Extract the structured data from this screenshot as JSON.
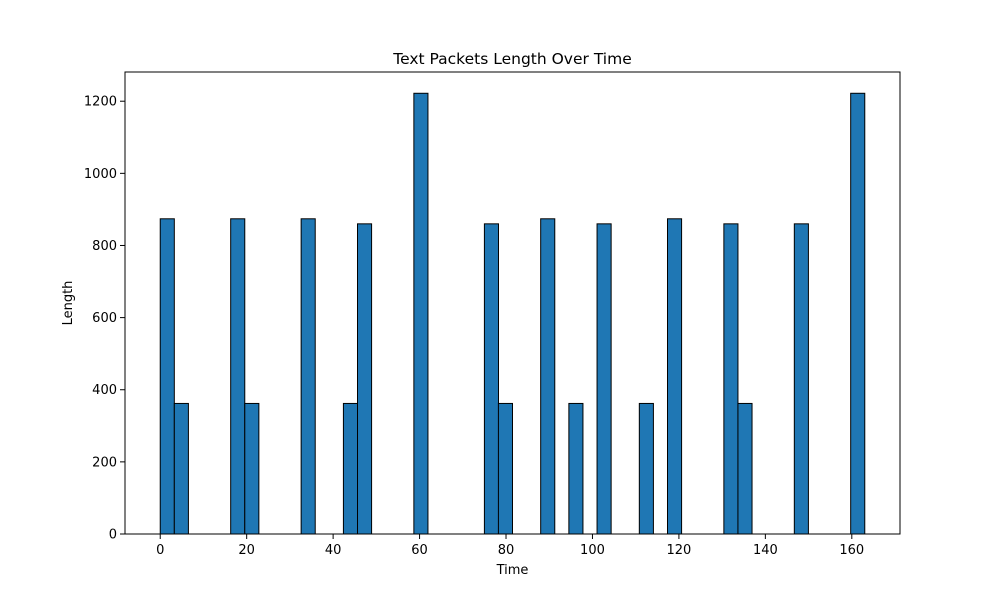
{
  "chart_data": {
    "type": "bar",
    "title": "Text Packets Length Over Time",
    "xlabel": "Time",
    "ylabel": "Length",
    "xlim": [
      -8.15,
      171.15
    ],
    "ylim": [
      0,
      1281
    ],
    "xticks": [
      0,
      20,
      40,
      60,
      80,
      100,
      120,
      140,
      160
    ],
    "yticks": [
      0,
      200,
      400,
      600,
      800,
      1000,
      1200
    ],
    "xtick_labels": [
      "0",
      "20",
      "40",
      "60",
      "80",
      "100",
      "120",
      "140",
      "160"
    ],
    "ytick_labels": [
      "0",
      "200",
      "400",
      "600",
      "800",
      "1000",
      "1200"
    ],
    "bin_width": 3.26,
    "bars": [
      {
        "x_start": 0.0,
        "value": 874
      },
      {
        "x_start": 3.26,
        "value": 362
      },
      {
        "x_start": 16.3,
        "value": 874
      },
      {
        "x_start": 19.56,
        "value": 362
      },
      {
        "x_start": 32.6,
        "value": 874
      },
      {
        "x_start": 42.38,
        "value": 362
      },
      {
        "x_start": 45.64,
        "value": 860
      },
      {
        "x_start": 58.68,
        "value": 1222
      },
      {
        "x_start": 75.0,
        "value": 860
      },
      {
        "x_start": 78.24,
        "value": 362
      },
      {
        "x_start": 88.02,
        "value": 874
      },
      {
        "x_start": 94.54,
        "value": 362
      },
      {
        "x_start": 101.06,
        "value": 860
      },
      {
        "x_start": 110.84,
        "value": 362
      },
      {
        "x_start": 117.36,
        "value": 874
      },
      {
        "x_start": 130.4,
        "value": 860
      },
      {
        "x_start": 133.66,
        "value": 362
      },
      {
        "x_start": 146.7,
        "value": 860
      },
      {
        "x_start": 159.74,
        "value": 1222
      }
    ],
    "grid": false,
    "legend": "none",
    "colors": {
      "bar_fill": "#1f77b4",
      "bar_edge": "#000000",
      "axis": "#000000"
    }
  }
}
